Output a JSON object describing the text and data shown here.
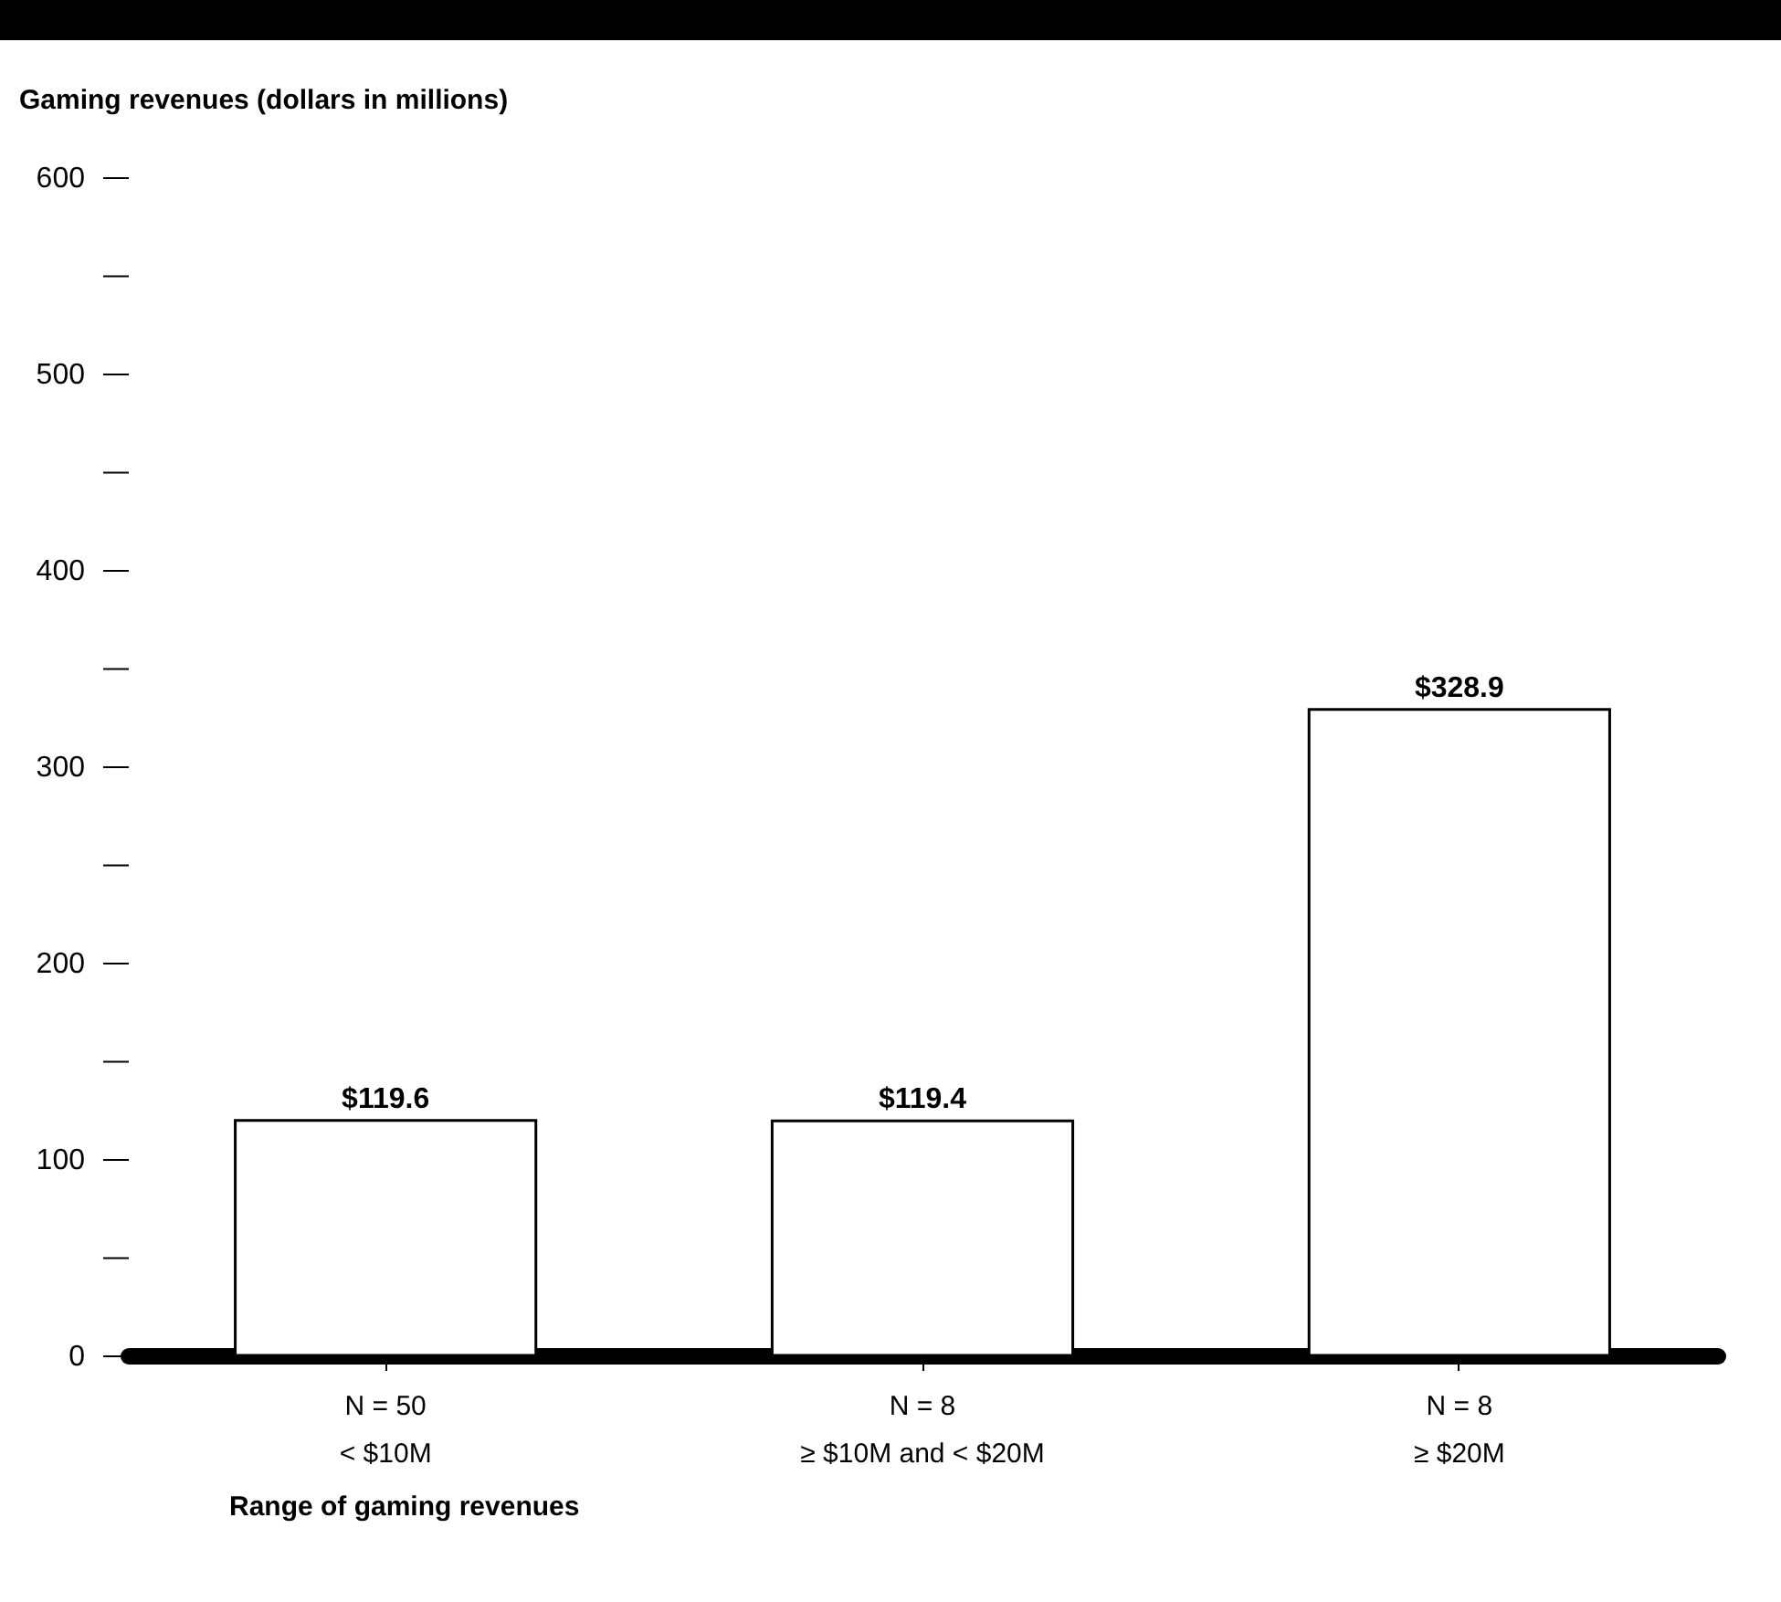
{
  "chart_data": {
    "type": "bar",
    "ylabel": "Gaming revenues (dollars in millions)",
    "xlabel": "Range of gaming revenues",
    "categories": [
      "< $10M",
      "≥ $10M and < $20M",
      "≥ $20M"
    ],
    "values": [
      119.6,
      119.4,
      328.9
    ],
    "value_labels": [
      "$119.6",
      "$119.4",
      "$328.9"
    ],
    "color": "#ffffff",
    "ylim": [
      0,
      600
    ],
    "yticks": [
      0,
      {
        "value": 50,
        "label": null
      },
      100,
      {
        "value": 150,
        "label": null
      },
      200,
      {
        "value": 250,
        "label": null
      },
      300,
      {
        "value": 350,
        "label": null
      },
      400,
      {
        "value": 450,
        "label": null
      },
      500,
      {
        "value": 550,
        "label": null
      },
      600
    ],
    "annotations": [
      "N = 50",
      "N = 8",
      "N = 8"
    ],
    "grid": false
  }
}
